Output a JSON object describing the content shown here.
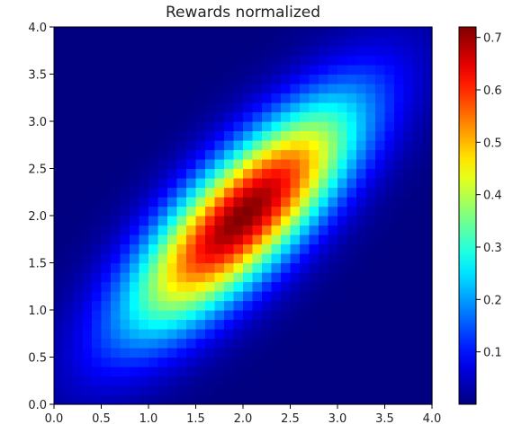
{
  "chart_data": {
    "type": "heatmap",
    "title": "Rewards normalized",
    "xlabel": "",
    "ylabel": "",
    "xlim": [
      0.0,
      4.0
    ],
    "ylim": [
      0.0,
      4.0
    ],
    "x_ticks": [
      "0.0",
      "0.5",
      "1.0",
      "1.5",
      "2.0",
      "2.5",
      "3.0",
      "3.5",
      "4.0"
    ],
    "y_ticks": [
      "0.0",
      "0.5",
      "1.0",
      "1.5",
      "2.0",
      "2.5",
      "3.0",
      "3.5",
      "4.0"
    ],
    "grid": "40x40 cells",
    "colormap": "jet",
    "colorbar": {
      "min": 0.0,
      "max": 0.72,
      "ticks": [
        "0.1",
        "0.2",
        "0.3",
        "0.4",
        "0.5",
        "0.6",
        "0.7"
      ],
      "tick_values": [
        0.1,
        0.2,
        0.3,
        0.4,
        0.5,
        0.6,
        0.7
      ],
      "placement": "right"
    },
    "distribution": {
      "form": "bivariate gaussian",
      "peak_value": 0.72,
      "center": [
        2.0,
        2.0
      ],
      "sigma_x": 0.82,
      "sigma_y": 0.82,
      "correlation": 0.78
    }
  }
}
